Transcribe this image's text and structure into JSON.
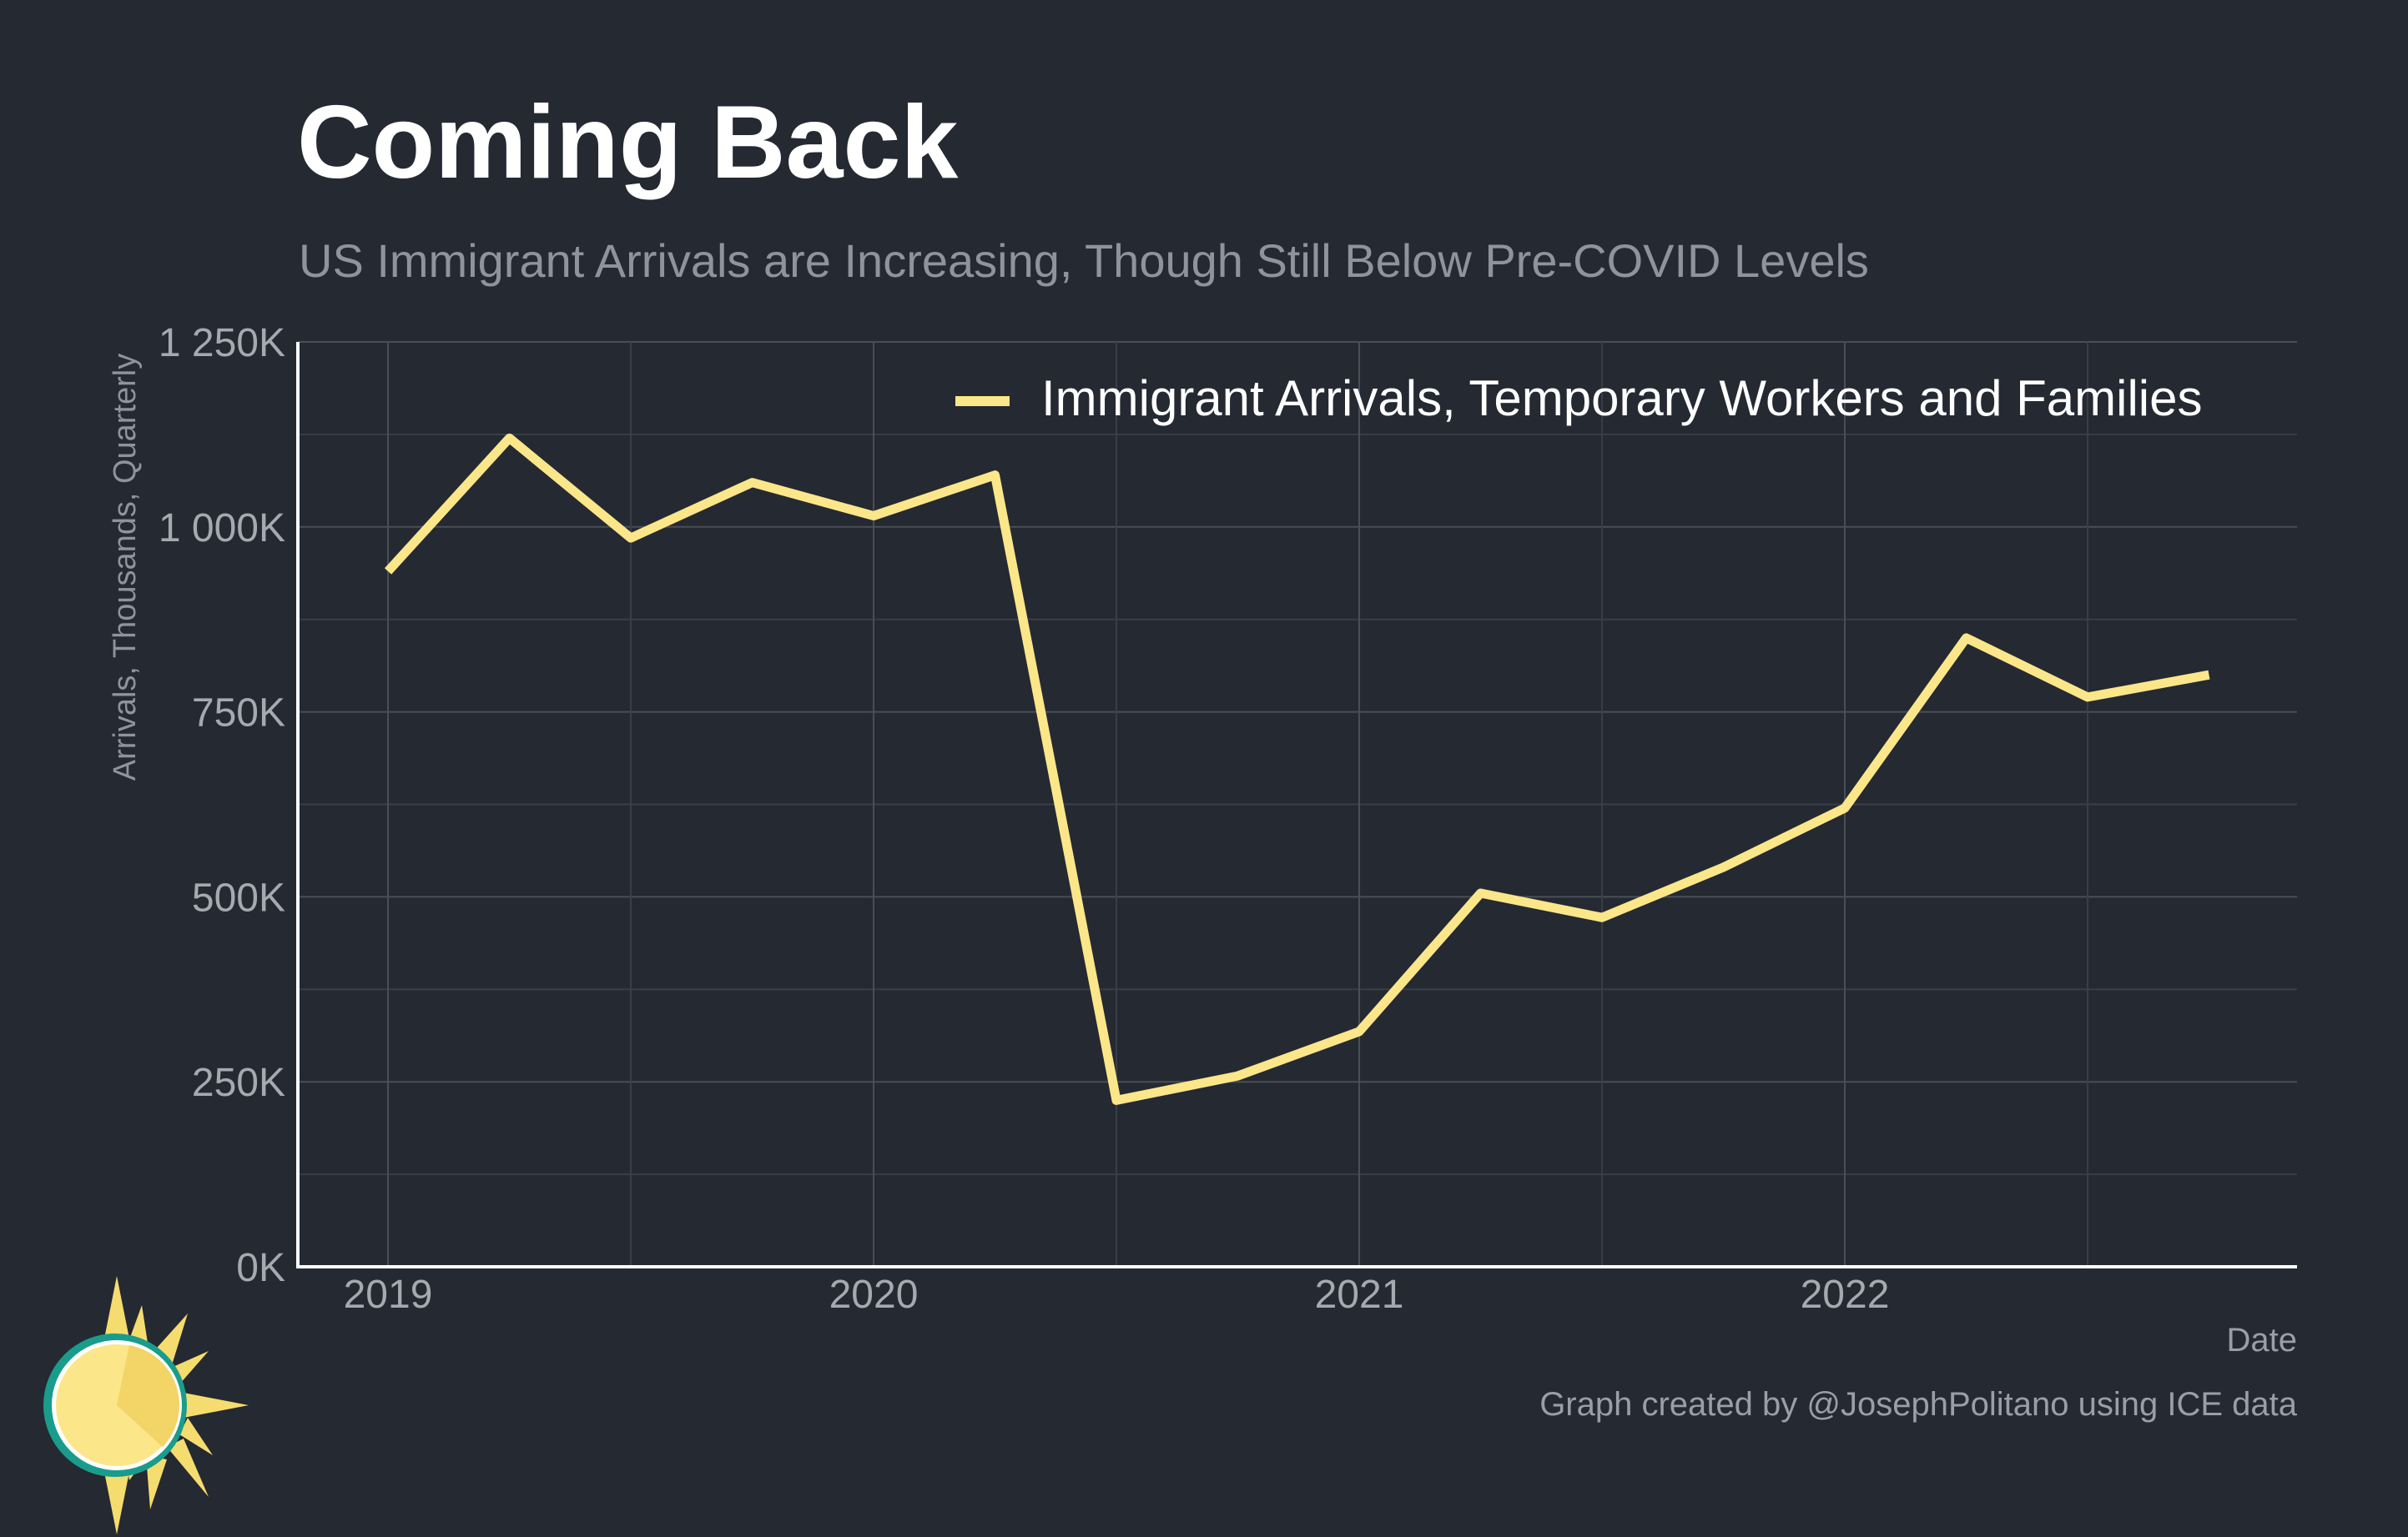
{
  "header": {
    "title": "Coming Back",
    "subtitle": "US Immigrant Arrivals are Increasing, Though Still Below Pre-COVID Levels"
  },
  "caption": "Graph created by @JosephPolitano using ICE data",
  "colors": {
    "background": "#252932",
    "line": "#FBE68A",
    "grid": "#4a4e57",
    "tick_text": "#a5a9b0",
    "axis": "#ffffff"
  },
  "chart_data": {
    "type": "line",
    "title": "Coming Back",
    "subtitle": "US Immigrant Arrivals are Increasing, Though Still Below Pre-COVID Levels",
    "xlabel": "Date",
    "ylabel": "Arrivals, Thousands, Quarterly",
    "x": [
      "2019-01",
      "2019-04",
      "2019-07",
      "2019-10",
      "2020-01",
      "2020-04",
      "2020-07",
      "2020-10",
      "2021-01",
      "2021-04",
      "2021-07",
      "2021-10",
      "2022-01",
      "2022-04",
      "2022-07",
      "2022-10"
    ],
    "series": [
      {
        "name": "Immigrant Arrivals, Temporary Workers and Families",
        "values": [
          940,
          1120,
          985,
          1060,
          1015,
          1070,
          225,
          258,
          318,
          505,
          472,
          540,
          620,
          850,
          770,
          800
        ]
      }
    ],
    "x_ticks": [
      "2019",
      "2020",
      "2021",
      "2022"
    ],
    "y_ticks": [
      "0K",
      "250K",
      "500K",
      "750K",
      "1 000K",
      "1 250K"
    ],
    "y_tick_values": [
      0,
      250,
      500,
      750,
      1000,
      1250
    ],
    "ylim": [
      0,
      1250
    ],
    "grid": true,
    "legend_position": "top-right"
  },
  "logo_icon": "sun-logo-icon"
}
